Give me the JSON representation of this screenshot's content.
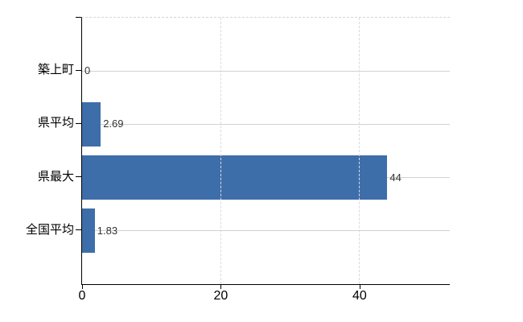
{
  "chart_data": {
    "type": "bar",
    "orientation": "horizontal",
    "title": "",
    "xlabel": "",
    "ylabel": "",
    "categories": [
      "築上町",
      "県平均",
      "県最大",
      "全国平均"
    ],
    "values": [
      0,
      2.69,
      44,
      1.83
    ],
    "value_labels": [
      "0",
      "2.69",
      "44",
      "1.83"
    ],
    "x_ticks": [
      {
        "value": 0,
        "label": "0"
      },
      {
        "value": 20,
        "label": "20"
      },
      {
        "value": 40,
        "label": "40"
      }
    ],
    "xlim": [
      0,
      53
    ],
    "grid": true,
    "legend_position": "none",
    "colors": {
      "background": "#ffffff",
      "bar": "#3e6eaa",
      "h_gridline": "#ccd5cc",
      "v_gridline": "#ded7dd",
      "top_border": "#d9d2d8",
      "axis": "#000000",
      "category_label": "#000000",
      "tick_label": "#000000",
      "value_label": "#333333"
    }
  }
}
